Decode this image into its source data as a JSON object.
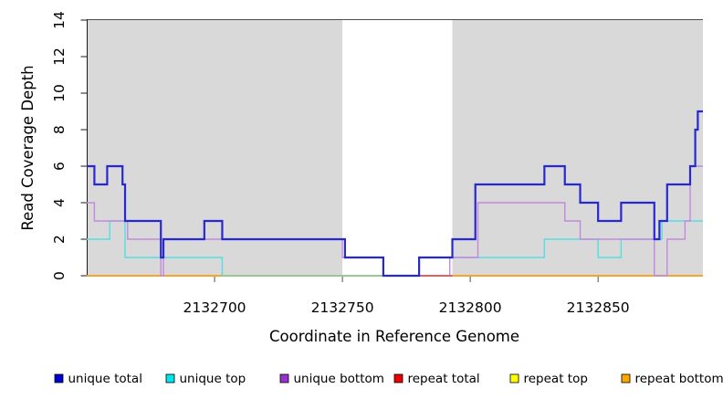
{
  "chart_data": {
    "type": "line",
    "subtype": "step-coverage-plot",
    "title": "",
    "xlabel": "Coordinate in Reference Genome",
    "ylabel": "Read Coverage Depth",
    "xlim": [
      2132650,
      2132891
    ],
    "ylim": [
      0,
      14
    ],
    "x_ticks": [
      2132700,
      2132750,
      2132800,
      2132850
    ],
    "y_ticks": [
      0,
      2,
      4,
      6,
      8,
      10,
      12,
      14
    ],
    "grid": false,
    "legend_position": "bottom",
    "colors": {
      "repeat_band": "#d9d9d9",
      "axis": "#1a1a1a",
      "frame": "#4d4d4d",
      "text": "#000000",
      "background": "#ffffff"
    },
    "repeat_regions": [
      [
        2132650,
        2132750
      ],
      [
        2132793,
        2132891
      ]
    ],
    "series": [
      {
        "name": "unique total",
        "color": "#0000cd",
        "line_color": "#2828d0",
        "width": 2.2,
        "steps": [
          [
            2132650,
            6
          ],
          [
            2132653,
            5
          ],
          [
            2132658,
            6
          ],
          [
            2132664,
            5
          ],
          [
            2132665,
            3
          ],
          [
            2132679,
            1
          ],
          [
            2132680,
            2
          ],
          [
            2132696,
            3
          ],
          [
            2132703,
            2
          ],
          [
            2132751,
            1
          ],
          [
            2132766,
            0
          ],
          [
            2132780,
            1
          ],
          [
            2132793,
            2
          ],
          [
            2132802,
            5
          ],
          [
            2132829,
            6
          ],
          [
            2132837,
            5
          ],
          [
            2132843,
            4
          ],
          [
            2132850,
            3
          ],
          [
            2132859,
            4
          ],
          [
            2132872,
            2
          ],
          [
            2132874,
            3
          ],
          [
            2132877,
            5
          ],
          [
            2132886,
            6
          ],
          [
            2132888,
            8
          ],
          [
            2132889,
            9
          ]
        ]
      },
      {
        "name": "unique top",
        "color": "#00e5ee",
        "line_color": "#55dde2",
        "width": 1.4,
        "steps": [
          [
            2132650,
            2
          ],
          [
            2132659,
            3
          ],
          [
            2132665,
            1
          ],
          [
            2132703,
            0
          ],
          [
            2132780,
            1
          ],
          [
            2132829,
            2
          ],
          [
            2132850,
            1
          ],
          [
            2132859,
            2
          ],
          [
            2132875,
            3
          ]
        ]
      },
      {
        "name": "unique bottom",
        "color": "#9932cc",
        "line_color": "#c488dd",
        "width": 1.4,
        "steps": [
          [
            2132650,
            4
          ],
          [
            2132653,
            3
          ],
          [
            2132666,
            2
          ],
          [
            2132679,
            0
          ],
          [
            2132680,
            2
          ],
          [
            2132750,
            1
          ],
          [
            2132766,
            0
          ],
          [
            2132792,
            1
          ],
          [
            2132803,
            4
          ],
          [
            2132837,
            3
          ],
          [
            2132843,
            2
          ],
          [
            2132872,
            0
          ],
          [
            2132877,
            2
          ],
          [
            2132884,
            3
          ],
          [
            2132886,
            6
          ]
        ]
      },
      {
        "name": "repeat total",
        "color": "#ee0000",
        "line_color": "#e05050",
        "width": 1.4,
        "steps": [
          [
            2132650,
            0
          ]
        ]
      },
      {
        "name": "repeat top",
        "color": "#ffff00",
        "line_color": "#ffff00",
        "width": 1.4,
        "steps": [
          [
            2132650,
            0
          ]
        ]
      },
      {
        "name": "repeat bottom",
        "color": "#ffa500",
        "line_color": "#ffa513",
        "width": 1.4,
        "steps": [
          [
            2132650,
            0
          ]
        ]
      }
    ],
    "baseline_visible_segments": [
      {
        "color": "#90d090",
        "from": 2132703,
        "to": 2132780
      },
      {
        "color": "#e05050",
        "from": 2132780,
        "to": 2132793
      }
    ]
  }
}
